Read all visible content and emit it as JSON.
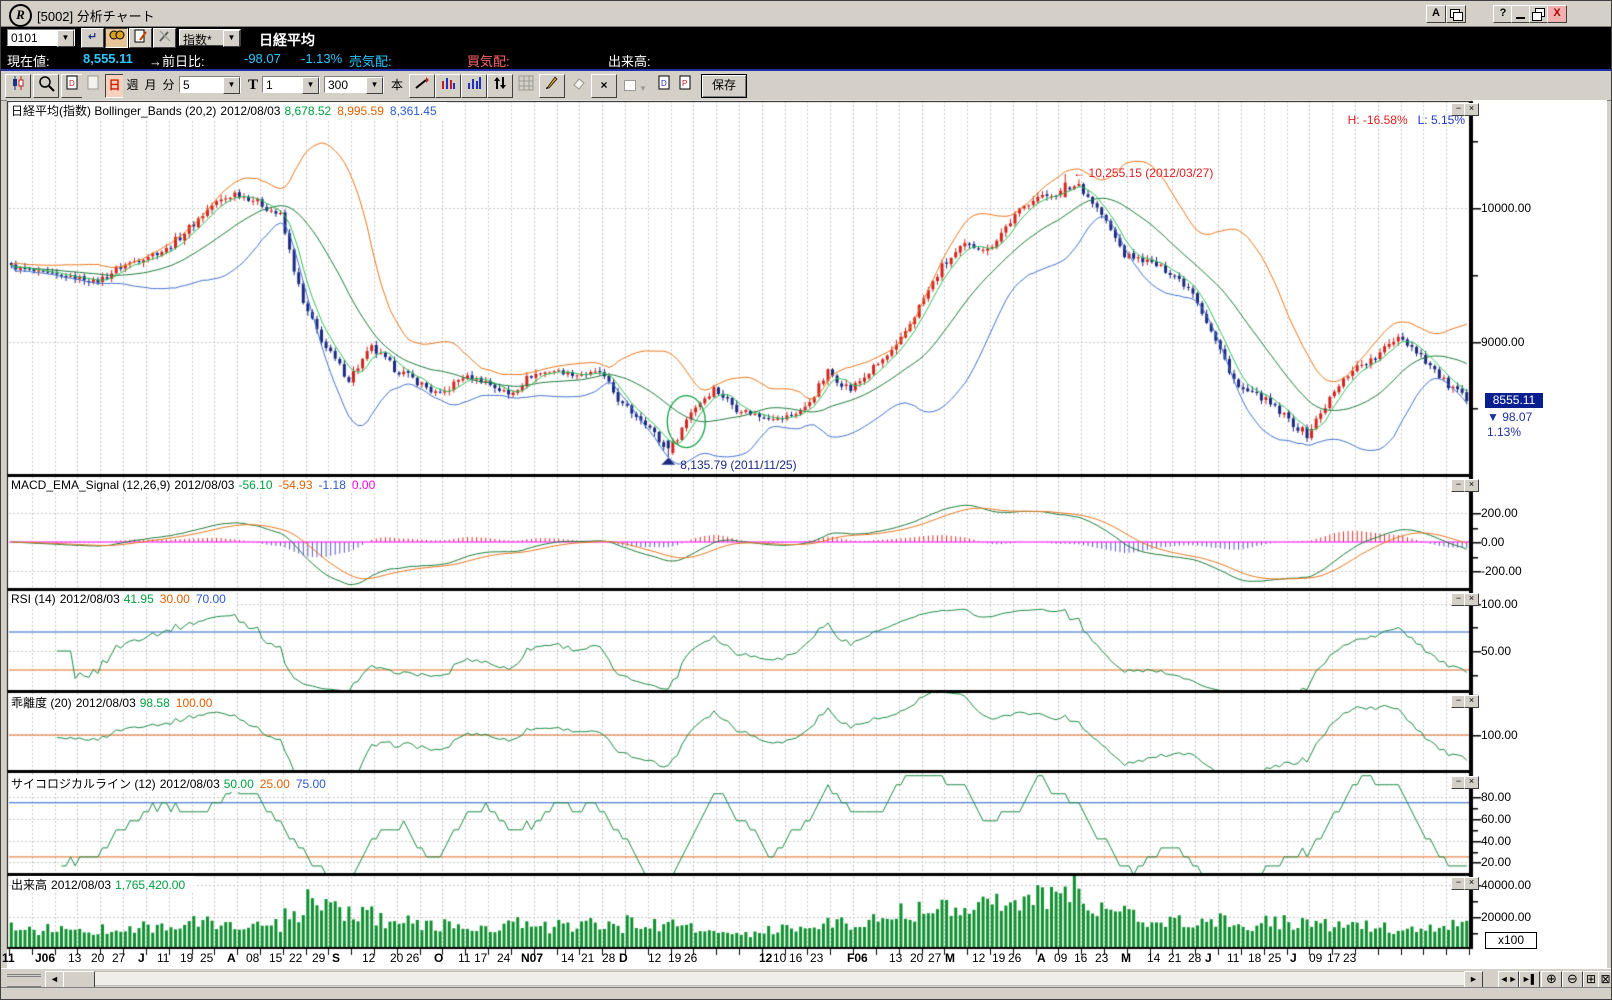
{
  "titlebar": {
    "logo": "R",
    "title": "[5002] 分析チャート",
    "btn_a": "A",
    "btn_help": "?",
    "btn_close": "X"
  },
  "symbol_bar": {
    "code": "0101",
    "category": "指数*",
    "name": "日経平均"
  },
  "quote_bar": {
    "label_current": "現在値:",
    "current": "8,555.11",
    "label_change": "→前日比:",
    "change": "-98.07",
    "change_pct": "-1.13%",
    "label_ask": "売気配:",
    "label_bid": "買気配:",
    "label_volume": "出来高:"
  },
  "chart_toolbar": {
    "day": "日",
    "week": "週",
    "month": "月",
    "minute": "分",
    "minute_value": "5",
    "tick_label": "T",
    "tick_value": "1",
    "bars_value": "300",
    "bars_unit": "本",
    "save": "保存"
  },
  "chart_data": {
    "type": "candlestick",
    "instrument": "日経平均",
    "visible_bars": 300,
    "panels": [
      {
        "id": "price",
        "title": "日経平均(指数) Bollinger_Bands (20,2)",
        "date": "2012/08/03",
        "values": [
          {
            "t": "8,678.52",
            "c": "#00a040"
          },
          {
            "t": "8,995.59",
            "c": "#e06000"
          },
          {
            "t": "8,361.45",
            "c": "#2a5ad0"
          }
        ],
        "y_labels": [
          {
            "v": 10000,
            "t": "10000.00"
          },
          {
            "v": 9000,
            "t": "9000.00"
          }
        ]
      },
      {
        "id": "macd",
        "title": "MACD_EMA_Signal (12,26,9)",
        "date": "2012/08/03",
        "values": [
          {
            "t": "-56.10",
            "c": "#00a040"
          },
          {
            "t": "-54.93",
            "c": "#e06000"
          },
          {
            "t": "-1.18",
            "c": "#2a5ad0"
          },
          {
            "t": "0.00",
            "c": "#ff00ff"
          }
        ],
        "y_labels": [
          {
            "v": 200,
            "t": "200.00"
          },
          {
            "v": 0,
            "t": "0.00"
          },
          {
            "v": -200,
            "t": "-200.00"
          }
        ]
      },
      {
        "id": "rsi",
        "title": "RSI (14)",
        "date": "2012/08/03",
        "values": [
          {
            "t": "41.95",
            "c": "#00a040"
          },
          {
            "t": "30.00",
            "c": "#e06000"
          },
          {
            "t": "70.00",
            "c": "#2a5ad0"
          }
        ],
        "y_labels": [
          {
            "v": 100,
            "t": "100.00"
          },
          {
            "v": 50,
            "t": "50.00"
          }
        ]
      },
      {
        "id": "kairi",
        "title": "乖離度 (20)",
        "date": "2012/08/03",
        "values": [
          {
            "t": "98.58",
            "c": "#00a040"
          },
          {
            "t": "100.00",
            "c": "#e06000"
          }
        ],
        "y_labels": [
          {
            "v": 100,
            "t": "100.00"
          }
        ]
      },
      {
        "id": "psych",
        "title": "サイコロジカルライン (12)",
        "date": "2012/08/03",
        "values": [
          {
            "t": "50.00",
            "c": "#00a040"
          },
          {
            "t": "25.00",
            "c": "#e06000"
          },
          {
            "t": "75.00",
            "c": "#2a5ad0"
          }
        ],
        "y_labels": [
          {
            "v": 80,
            "t": "80.00"
          },
          {
            "v": 60,
            "t": "60.00"
          },
          {
            "v": 40,
            "t": "40.00"
          },
          {
            "v": 20,
            "t": "20.00"
          }
        ]
      },
      {
        "id": "volume",
        "title": "出来高",
        "date": "2012/08/03",
        "values": [
          {
            "t": "1,765,420.00",
            "c": "#00a040"
          }
        ],
        "y_labels": [
          {
            "v": 40000,
            "t": "40000.00"
          },
          {
            "v": 20000,
            "t": "20000.00"
          }
        ]
      }
    ],
    "weeks": 64,
    "weekly_close": [
      9530,
      9500,
      9480,
      9450,
      9560,
      9630,
      9690,
      9850,
      10020,
      10110,
      10050,
      9940,
      9280,
      8950,
      8720,
      8950,
      8800,
      8700,
      8590,
      8740,
      8700,
      8600,
      8750,
      8780,
      8750,
      8770,
      8520,
      8400,
      8160,
      8480,
      8650,
      8500,
      8440,
      8420,
      8500,
      8770,
      8640,
      8800,
      8950,
      9260,
      9560,
      9720,
      9690,
      9900,
      10080,
      10100,
      10180,
      9950,
      9650,
      9600,
      9520,
      9380,
      9000,
      8650,
      8580,
      8440,
      8300,
      8570,
      8800,
      8870,
      9050,
      8900,
      8700,
      8560
    ],
    "weekly_volume": [
      13000,
      12000,
      11000,
      11000,
      12000,
      14000,
      13000,
      14000,
      16000,
      15000,
      13000,
      14000,
      20000,
      28000,
      24000,
      20000,
      17000,
      16000,
      15000,
      14000,
      13000,
      14000,
      15000,
      13000,
      14000,
      15000,
      13000,
      16000,
      15000,
      14000,
      12000,
      8000,
      10000,
      12000,
      13000,
      15000,
      16000,
      17000,
      20000,
      23000,
      26000,
      28000,
      27000,
      30000,
      33000,
      30000,
      36000,
      26000,
      22000,
      19000,
      17000,
      16000,
      18000,
      17000,
      15000,
      16000,
      15000,
      14000,
      13000,
      14000,
      13000,
      12000,
      12000,
      14000
    ],
    "pinned_high": {
      "week": 46,
      "day": 1,
      "value": 10255.15,
      "label": "← 10,255.15 (2012/03/27)"
    },
    "pinned_low": {
      "week": 28,
      "day": 4,
      "value": 8135.79,
      "label": "8,135.79 (2011/11/25)"
    },
    "last": {
      "close": 8555.11,
      "box": "8555.11",
      "change": "▼ 98.07",
      "pct": "1.13%"
    },
    "hl": {
      "high": "H: -16.58%",
      "low": "L: 5.15%"
    },
    "scale_unit": "x100",
    "x_labels": [
      [
        0,
        "11",
        1
      ],
      [
        1.6,
        "J06",
        1
      ],
      [
        2.9,
        "13",
        0
      ],
      [
        3.9,
        "20",
        0
      ],
      [
        4.8,
        "27",
        0
      ],
      [
        5.8,
        "J",
        1
      ],
      [
        6.8,
        "11",
        0
      ],
      [
        7.8,
        "19",
        0
      ],
      [
        8.7,
        "25",
        0
      ],
      [
        9.7,
        "A",
        1
      ],
      [
        10.7,
        "08",
        0
      ],
      [
        11.7,
        "15",
        0
      ],
      [
        12.6,
        "22",
        0
      ],
      [
        13.6,
        "29",
        0
      ],
      [
        14.3,
        "S",
        1
      ],
      [
        15.8,
        "12",
        0
      ],
      [
        17,
        "20",
        0
      ],
      [
        17.7,
        "26",
        0
      ],
      [
        18.8,
        "O",
        1
      ],
      [
        20,
        "11",
        0
      ],
      [
        20.7,
        "17",
        0
      ],
      [
        21.7,
        "24",
        0
      ],
      [
        22.9,
        "N07",
        1
      ],
      [
        24.5,
        "14",
        0
      ],
      [
        25.4,
        "21",
        0
      ],
      [
        26.3,
        "28",
        0
      ],
      [
        26.9,
        "D",
        1
      ],
      [
        28.3,
        "12",
        0
      ],
      [
        29.2,
        "19",
        0
      ],
      [
        29.9,
        "26",
        0
      ],
      [
        33.2,
        "12",
        1
      ],
      [
        33.8,
        "10",
        0
      ],
      [
        34.5,
        "16",
        0
      ],
      [
        35.4,
        "23",
        0
      ],
      [
        37.2,
        "F06",
        1
      ],
      [
        38.9,
        "13",
        0
      ],
      [
        39.8,
        "20",
        0
      ],
      [
        40.6,
        "27",
        0
      ],
      [
        41.2,
        "M",
        1
      ],
      [
        42.5,
        "12",
        0
      ],
      [
        43.4,
        "19",
        0
      ],
      [
        44.1,
        "26",
        0
      ],
      [
        45.2,
        "A",
        1
      ],
      [
        46.1,
        "09",
        0
      ],
      [
        47,
        "16",
        0
      ],
      [
        47.9,
        "23",
        0
      ],
      [
        48.9,
        "M",
        1
      ],
      [
        50.2,
        "14",
        0
      ],
      [
        51.1,
        "21",
        0
      ],
      [
        52,
        "28",
        0
      ],
      [
        52.6,
        "J",
        1
      ],
      [
        53.7,
        "11",
        0
      ],
      [
        54.6,
        "18",
        0
      ],
      [
        55.5,
        "25",
        0
      ],
      [
        56.3,
        "J",
        1
      ],
      [
        57.3,
        "09",
        0
      ],
      [
        58.1,
        "17",
        0
      ],
      [
        58.8,
        "23",
        0
      ]
    ]
  }
}
